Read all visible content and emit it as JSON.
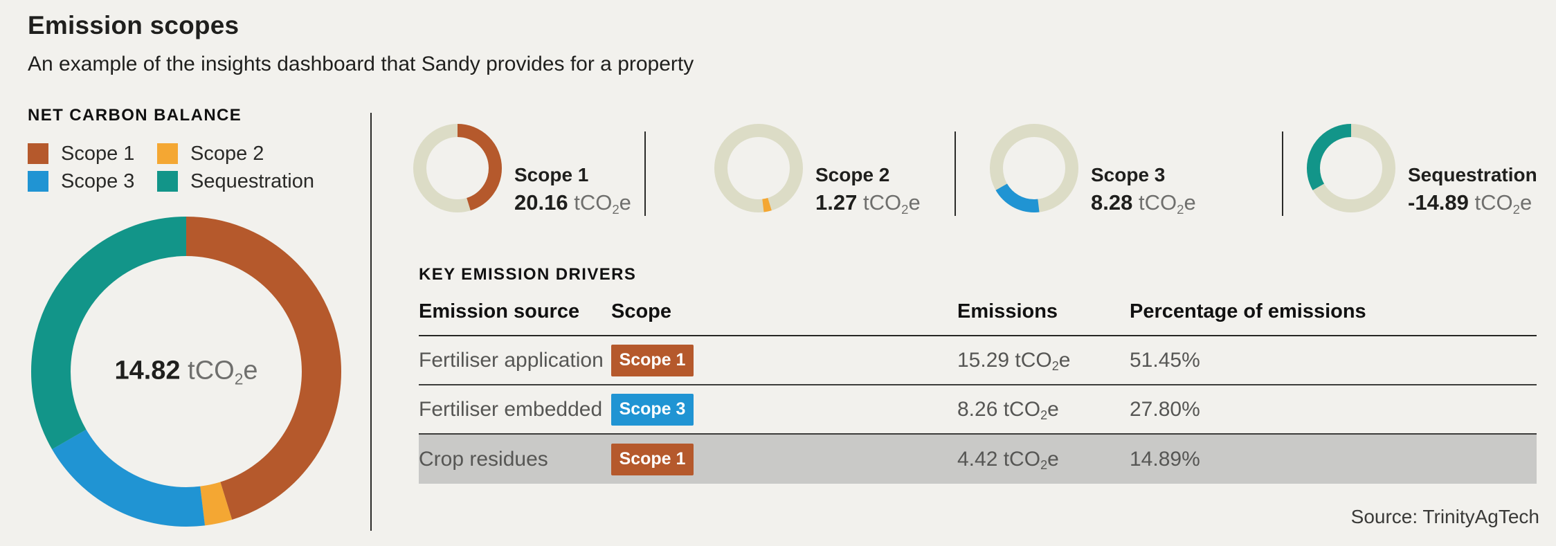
{
  "page": {
    "title": "Emission scopes",
    "subtitle": "An example of the insights dashboard that Sandy provides for a property",
    "source": "Source: TrinityAgTech"
  },
  "colors": {
    "background": "#f2f1ed",
    "scope1": "#b5592c",
    "scope2": "#f4a733",
    "scope3": "#2094d3",
    "sequestration": "#129589",
    "donut_track": "#dcdcc6",
    "highlight_row": "#c9c9c7",
    "dark_text": "#1f1f1d",
    "muted_unit_text": "#6f6f6d",
    "table_text": "#565654"
  },
  "unit": {
    "pre": "tCO",
    "sub": "2",
    "post": "e"
  },
  "scope_color_keys": {
    "Scope 1": "scope1",
    "Scope 2": "scope2",
    "Scope 3": "scope3",
    "Sequestration": "sequestration"
  },
  "net_carbon_balance": {
    "label": "NET CARBON BALANCE",
    "legend": [
      {
        "label": "Scope 1",
        "color_key": "scope1"
      },
      {
        "label": "Scope 2",
        "color_key": "scope2"
      },
      {
        "label": "Scope 3",
        "color_key": "scope3"
      },
      {
        "label": "Sequestration",
        "color_key": "sequestration"
      }
    ],
    "total_value": "14.82"
  },
  "scope_summaries": [
    {
      "label": "Scope 1",
      "value": "20.16",
      "color_key": "scope1"
    },
    {
      "label": "Scope 2",
      "value": "1.27",
      "color_key": "scope2"
    },
    {
      "label": "Scope 3",
      "value": "8.28",
      "color_key": "scope3"
    },
    {
      "label": "Sequestration",
      "value": "-14.89",
      "color_key": "sequestration"
    }
  ],
  "key_drivers": {
    "label": "KEY EMISSION DRIVERS",
    "columns": [
      "Emission source",
      "Scope",
      "Emissions",
      "Percentage of emissions"
    ],
    "rows": [
      {
        "source": "Fertiliser application",
        "scope": "Scope 1",
        "emissions": "15.29",
        "percentage": "51.45%",
        "highlight": false
      },
      {
        "source": "Fertiliser embedded",
        "scope": "Scope 3",
        "emissions": "8.26",
        "percentage": "27.80%",
        "highlight": false
      },
      {
        "source": "Crop residues",
        "scope": "Scope 1",
        "emissions": "4.42",
        "percentage": "14.89%",
        "highlight": true
      }
    ]
  },
  "chart_data": [
    {
      "type": "pie",
      "subtype": "donut",
      "title": "Net carbon balance",
      "center_label": "14.82 tCO2e",
      "units": "tCO2e",
      "categories": [
        "Scope 1",
        "Scope 2",
        "Scope 3",
        "Sequestration"
      ],
      "values": [
        20.16,
        1.27,
        8.28,
        14.89
      ],
      "signed_values": [
        20.16,
        1.27,
        8.28,
        -14.89
      ],
      "colors": [
        "#b5592c",
        "#f4a733",
        "#2094d3",
        "#129589"
      ],
      "start_angle": "top",
      "direction": "clockwise",
      "legend_position": "top-left"
    },
    {
      "type": "pie",
      "subtype": "donut",
      "title": "Scope 1",
      "values": [
        20.16
      ],
      "total_reference": 44.6,
      "label": "20.16 tCO2e",
      "colors": [
        "#b5592c"
      ],
      "track_color": "#dcdcc6"
    },
    {
      "type": "pie",
      "subtype": "donut",
      "title": "Scope 2",
      "values": [
        1.27
      ],
      "total_reference": 44.6,
      "label": "1.27 tCO2e",
      "colors": [
        "#f4a733"
      ],
      "track_color": "#dcdcc6"
    },
    {
      "type": "pie",
      "subtype": "donut",
      "title": "Scope 3",
      "values": [
        8.28
      ],
      "total_reference": 44.6,
      "label": "8.28 tCO2e",
      "colors": [
        "#2094d3"
      ],
      "track_color": "#dcdcc6"
    },
    {
      "type": "pie",
      "subtype": "donut",
      "title": "Sequestration",
      "values": [
        14.89
      ],
      "total_reference": 44.6,
      "label": "-14.89 tCO2e",
      "colors": [
        "#129589"
      ],
      "track_color": "#dcdcc6"
    }
  ]
}
